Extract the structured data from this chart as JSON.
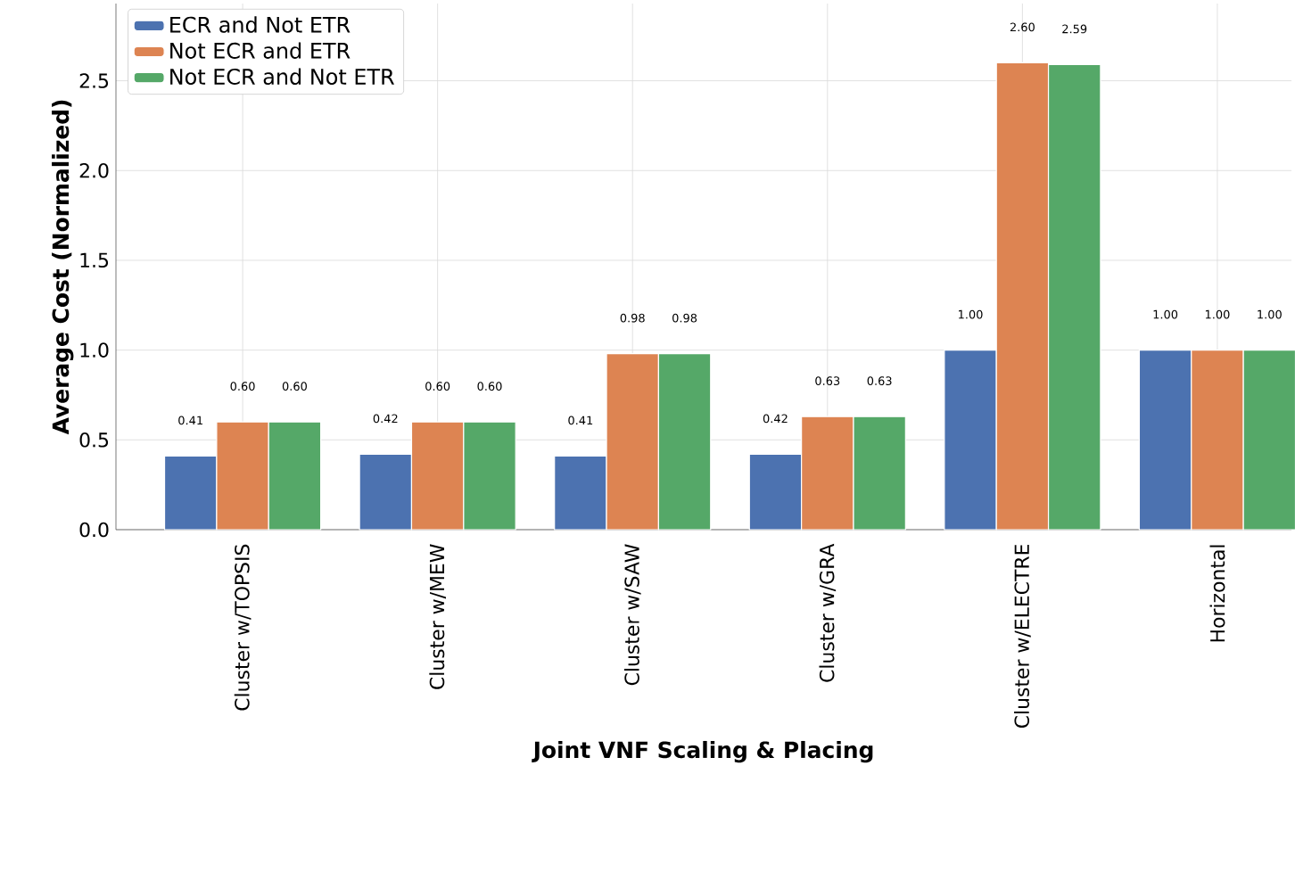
{
  "chart_data": {
    "type": "bar",
    "xlabel": "Joint VNF Scaling & Placing",
    "ylabel": "Average Cost (Normalized)",
    "categories": [
      "Cluster w/TOPSIS",
      "Cluster w/MEW",
      "Cluster w/SAW",
      "Cluster w/GRA",
      "Cluster w/ELECTRE",
      "Horizontal"
    ],
    "series": [
      {
        "name": "ECR and Not ETR",
        "color": "#4c72b0",
        "values": [
          0.41,
          0.42,
          0.41,
          0.42,
          1.0,
          1.0
        ],
        "value_labels": [
          "0.41",
          "0.42",
          "0.41",
          "0.42",
          "1.00",
          "1.00"
        ]
      },
      {
        "name": "Not ECR and ETR",
        "color": "#dd8452",
        "values": [
          0.6,
          0.6,
          0.98,
          0.63,
          2.6,
          1.0
        ],
        "value_labels": [
          "0.60",
          "0.60",
          "0.98",
          "0.63",
          "2.60",
          "1.00"
        ]
      },
      {
        "name": "Not ECR and Not ETR",
        "color": "#55a868",
        "values": [
          0.6,
          0.6,
          0.98,
          0.63,
          2.59,
          1.0
        ],
        "value_labels": [
          "0.60",
          "0.60",
          "0.98",
          "0.63",
          "2.59",
          "1.00"
        ]
      }
    ],
    "ylim": [
      0,
      2.93
    ],
    "yticks": [
      {
        "value": 0,
        "label": "0.0"
      },
      0.5,
      {
        "value": 1,
        "label": "1.0"
      },
      1.5,
      {
        "value": 2,
        "label": "2.0"
      },
      2.5
    ],
    "grid": true,
    "legend": "top left"
  }
}
